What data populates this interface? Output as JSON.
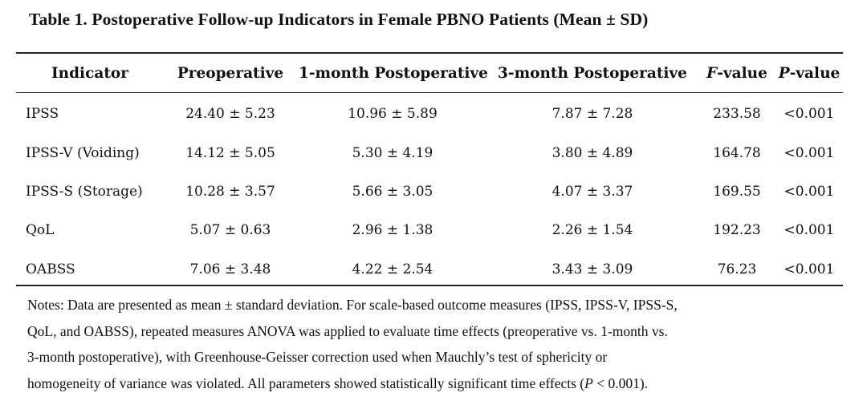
{
  "caption": "Table 1. Postoperative Follow-up Indicators in Female PBNO Patients (Mean ± SD)",
  "headers": {
    "indicator": "Indicator",
    "preop": "Preoperative",
    "m1": "1-month Postoperative",
    "m3": "3-month Postoperative",
    "f_letter": "F",
    "f_suffix": "-value",
    "p_letter": "P",
    "p_suffix": "-value"
  },
  "rows": [
    {
      "indicator": "IPSS",
      "preop": "24.40 ± 5.23",
      "m1": "10.96 ± 5.89",
      "m3": "7.87 ± 7.28",
      "f": "233.58",
      "p": "<0.001"
    },
    {
      "indicator": "IPSS-V (Voiding)",
      "preop": "14.12 ± 5.05",
      "m1": "5.30 ± 4.19",
      "m3": "3.80 ± 4.89",
      "f": "164.78",
      "p": "<0.001"
    },
    {
      "indicator": "IPSS-S (Storage)",
      "preop": "10.28 ± 3.57",
      "m1": "5.66 ± 3.05",
      "m3": "4.07 ± 3.37",
      "f": "169.55",
      "p": "<0.001"
    },
    {
      "indicator": "QoL",
      "preop": "5.07 ± 0.63",
      "m1": "2.96 ± 1.38",
      "m3": "2.26 ± 1.54",
      "f": "192.23",
      "p": "<0.001"
    },
    {
      "indicator": "OABSS",
      "preop": "7.06 ± 3.48",
      "m1": "4.22 ± 2.54",
      "m3": "3.43 ± 3.09",
      "f": "76.23",
      "p": "<0.001"
    }
  ],
  "notes": {
    "text_main": "Notes: Data are presented as mean ± standard deviation. For scale-based outcome measures (IPSS, IPSS-V, IPSS-S,\nQoL, and OABSS), repeated measures ANOVA was applied to evaluate time effects (preoperative vs. 1-month vs.\n3-month postoperative), with Greenhouse-Geisser correction used when Mauchly’s test of sphericity or\nhomogeneity of variance was violated. All parameters showed statistically significant time effects (",
    "p_letter": "P",
    "text_end": " < 0.001)."
  }
}
